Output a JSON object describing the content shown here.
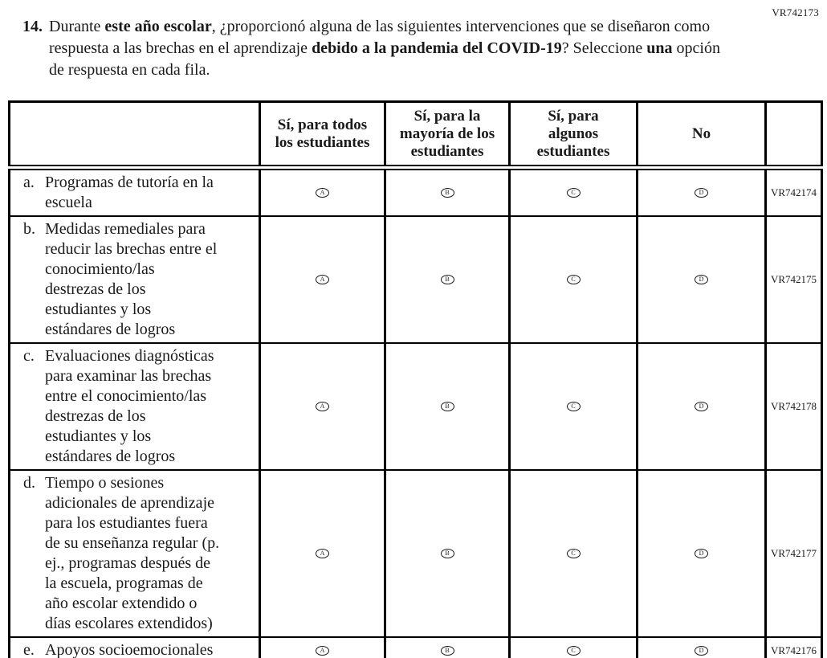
{
  "page": {
    "form_code_top": "VR742173"
  },
  "question": {
    "number": "14.",
    "segments": [
      {
        "t": "Durante ",
        "b": false
      },
      {
        "t": "este año escolar",
        "b": true
      },
      {
        "t": ", ¿proporcionó alguna de las siguientes intervenciones que se diseñaron como respuesta a las brechas en el aprendizaje ",
        "b": false
      },
      {
        "t": "debido a la pandemia del COVID-19",
        "b": true
      },
      {
        "t": "? Seleccione ",
        "b": false
      },
      {
        "t": "una",
        "b": true
      },
      {
        "t": " opción de respuesta en cada fila.",
        "b": false
      }
    ]
  },
  "table": {
    "columns": [
      "",
      "Sí, para todos\nlos estudiantes",
      "Sí, para la\nmayoría de los\nestudiantes",
      "Sí, para\nalgunos\nestudiantes",
      "No",
      ""
    ],
    "options": [
      "A",
      "B",
      "C",
      "D"
    ],
    "rows": [
      {
        "letter": "a.",
        "label": "Programas de tutoría en la\nescuela",
        "code": "VR742174"
      },
      {
        "letter": "b.",
        "label": "Medidas remediales para\nreducir las brechas entre el\nconocimiento/las\ndestrezas de los\nestudiantes y los\nestándares de logros",
        "code": "VR742175"
      },
      {
        "letter": "c.",
        "label": "Evaluaciones diagnósticas\npara examinar las brechas\nentre el conocimiento/las\ndestrezas de los\nestudiantes y los\nestándares de logros",
        "code": "VR742178"
      },
      {
        "letter": "d.",
        "label": "Tiempo o sesiones\nadicionales de aprendizaje\npara los estudiantes fuera\nde su enseñanza regular (p.\nej., programas después de\nla escuela, programas de\naño escolar extendido o\ndías escolares extendidos)",
        "code": "VR742177"
      },
      {
        "letter": "e.",
        "label": "Apoyos socioemocionales",
        "code": "VR742176"
      }
    ]
  }
}
